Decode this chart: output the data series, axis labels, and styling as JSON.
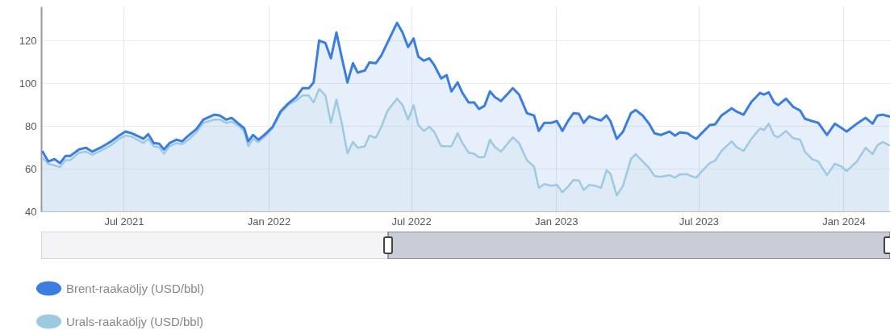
{
  "chart_data": {
    "type": "area",
    "x": [
      "2021-03-20",
      "2021-03-27",
      "2021-04-04",
      "2021-04-11",
      "2021-04-18",
      "2021-04-24",
      "2021-05-05",
      "2021-05-14",
      "2021-05-22",
      "2021-06-02",
      "2021-06-15",
      "2021-06-25",
      "2021-07-03",
      "2021-07-11",
      "2021-07-26",
      "2021-08-01",
      "2021-08-08",
      "2021-08-15",
      "2021-08-21",
      "2021-08-28",
      "2021-09-06",
      "2021-09-13",
      "2021-09-21",
      "2021-10-01",
      "2021-10-10",
      "2021-10-24",
      "2021-10-31",
      "2021-11-08",
      "2021-11-15",
      "2021-11-24",
      "2021-12-01",
      "2021-12-06",
      "2021-12-12",
      "2021-12-19",
      "2021-12-27",
      "2022-01-06",
      "2022-01-16",
      "2022-01-26",
      "2022-02-05",
      "2022-02-13",
      "2022-02-21",
      "2022-02-27",
      "2022-03-06",
      "2022-03-14",
      "2022-03-21",
      "2022-03-28",
      "2022-04-04",
      "2022-04-11",
      "2022-04-18",
      "2022-04-24",
      "2022-05-03",
      "2022-05-09",
      "2022-05-17",
      "2022-05-24",
      "2022-06-01",
      "2022-06-13",
      "2022-06-20",
      "2022-06-27",
      "2022-07-04",
      "2022-07-10",
      "2022-07-17",
      "2022-07-24",
      "2022-07-30",
      "2022-08-08",
      "2022-08-15",
      "2022-08-21",
      "2022-08-29",
      "2022-09-04",
      "2022-09-12",
      "2022-09-19",
      "2022-09-25",
      "2022-10-02",
      "2022-10-09",
      "2022-10-15",
      "2022-10-23",
      "2022-11-07",
      "2022-11-15",
      "2022-11-25",
      "2022-12-04",
      "2022-12-10",
      "2022-12-17",
      "2022-12-26",
      "2023-01-02",
      "2023-01-09",
      "2023-01-16",
      "2023-01-23",
      "2023-01-30",
      "2023-02-05",
      "2023-02-12",
      "2023-02-20",
      "2023-02-27",
      "2023-03-06",
      "2023-03-11",
      "2023-03-19",
      "2023-03-27",
      "2023-04-06",
      "2023-04-12",
      "2023-04-21",
      "2023-04-29",
      "2023-05-06",
      "2023-05-14",
      "2023-05-25",
      "2023-06-01",
      "2023-06-07",
      "2023-06-17",
      "2023-06-21",
      "2023-06-28",
      "2023-07-07",
      "2023-07-15",
      "2023-07-22",
      "2023-07-30",
      "2023-08-12",
      "2023-08-18",
      "2023-08-27",
      "2023-09-06",
      "2023-09-17",
      "2023-09-22",
      "2023-09-28",
      "2023-10-05",
      "2023-10-10",
      "2023-10-20",
      "2023-10-29",
      "2023-11-07",
      "2023-11-13",
      "2023-11-22",
      "2023-11-30",
      "2023-12-11",
      "2023-12-21",
      "2023-12-29",
      "2024-01-05",
      "2024-01-18",
      "2024-01-29",
      "2024-02-07",
      "2024-02-13",
      "2024-02-20",
      "2024-02-28"
    ],
    "series": [
      {
        "name": "Brent-raakaöljy (USD/bbl)",
        "color": "#3b7de0",
        "values": [
          67.9,
          63.4,
          64.5,
          62.6,
          66,
          66,
          69,
          69.8,
          68,
          70,
          72.8,
          75.5,
          77.4,
          76.6,
          74,
          76.2,
          72,
          71.7,
          69,
          72,
          73.6,
          72.8,
          75.5,
          78.5,
          83,
          85.3,
          84.9,
          83,
          83.8,
          81,
          78.9,
          72.8,
          75.8,
          73.6,
          76,
          79.6,
          86.8,
          90.6,
          93.6,
          97.7,
          97.7,
          100.4,
          120,
          118.9,
          111.7,
          123.8,
          111.7,
          100.4,
          109.4,
          105,
          106,
          109.8,
          109.4,
          113,
          119.2,
          128.3,
          123.8,
          117,
          121,
          112.5,
          110.6,
          111.7,
          108.7,
          102.3,
          103.8,
          96.2,
          100.4,
          95.5,
          91,
          91,
          88,
          89.4,
          96.2,
          93.6,
          91.7,
          97.7,
          94.7,
          86,
          84.9,
          77.7,
          81.5,
          81.5,
          82.3,
          77.7,
          82.3,
          86,
          85.7,
          81.5,
          84.5,
          83.4,
          82.6,
          84.9,
          82.3,
          74,
          77.4,
          86,
          87.5,
          84.9,
          81.1,
          76.6,
          75.8,
          77.4,
          75.5,
          77,
          76.6,
          75.5,
          74,
          77.4,
          80.4,
          80.8,
          84.9,
          88.3,
          86.8,
          85.3,
          91.3,
          95.5,
          94.7,
          95.8,
          91,
          89.8,
          92.8,
          89,
          87.2,
          83.4,
          82.3,
          81.5,
          75.8,
          81.1,
          79.2,
          77.4,
          81.1,
          83.8,
          81.1,
          84.9,
          85.3,
          84.5
        ]
      },
      {
        "name": "Urals-raakaöljy (USD/bbl)",
        "color": "#9ecae1",
        "values": [
          65,
          62.3,
          61.5,
          60.8,
          64,
          64,
          67.5,
          68,
          66.5,
          68.5,
          71,
          74,
          75.5,
          75,
          72,
          74,
          70.5,
          70,
          67,
          70.5,
          72,
          71.5,
          73.5,
          77,
          81.5,
          83,
          83,
          81.5,
          82,
          80,
          77.5,
          70.5,
          74,
          72.5,
          75,
          79,
          86,
          90,
          92,
          94.3,
          94.3,
          91,
          97.4,
          94.3,
          81.5,
          92.3,
          81,
          67.2,
          72.5,
          69.8,
          70.5,
          75.5,
          74.5,
          79.6,
          87.2,
          92.8,
          89.8,
          83,
          89.8,
          80.4,
          77.7,
          79.6,
          77.4,
          70.6,
          70.5,
          70.5,
          76.6,
          72,
          67.5,
          67,
          65.3,
          65.5,
          73.6,
          70.2,
          68,
          74.7,
          72,
          64,
          61,
          51,
          52.8,
          52,
          52.5,
          49,
          51.5,
          54.7,
          54.5,
          50,
          52.4,
          52,
          51,
          59.3,
          57.7,
          47.5,
          52,
          64.5,
          66.8,
          63.4,
          60.4,
          56.6,
          56.2,
          57,
          55.8,
          57.4,
          57.4,
          56.6,
          55.8,
          59.6,
          62.6,
          63.8,
          68.3,
          72.8,
          70.2,
          68.3,
          74,
          78.9,
          78.1,
          81.1,
          75.5,
          74.7,
          77.7,
          74.3,
          73.6,
          68,
          64.5,
          63.4,
          57,
          62.3,
          61.1,
          58.9,
          63.4,
          69.8,
          66.8,
          71,
          72.5,
          71
        ]
      }
    ],
    "xlim": [
      "2021-03-18",
      "2024-02-29"
    ],
    "xticks": [
      {
        "value": "2021-07-01",
        "label": "Jul 2021"
      },
      {
        "value": "2022-01-01",
        "label": "Jan 2022"
      },
      {
        "value": "2022-07-01",
        "label": "Jul 2022"
      },
      {
        "value": "2023-01-01",
        "label": "Jan 2023"
      },
      {
        "value": "2023-07-01",
        "label": "Jul 2023"
      },
      {
        "value": "2024-01-01",
        "label": "Jan 2024"
      }
    ],
    "ylim": [
      40,
      136
    ],
    "yticks": [
      40,
      60,
      80,
      100,
      120
    ],
    "grid": true,
    "legend": "bottom left"
  }
}
